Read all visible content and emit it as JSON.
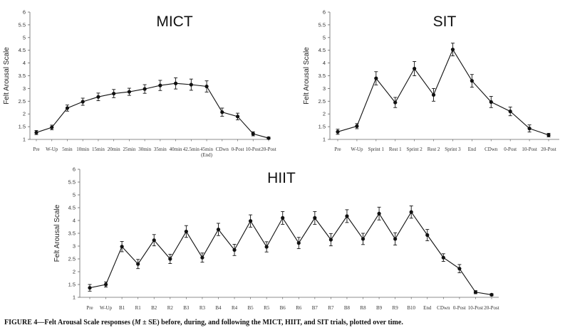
{
  "caption": {
    "label": "FIGURE 4—",
    "text_1": "Felt Arousal Scale responses (",
    "symbol_m": "M",
    "text_2": " ± SE) before, during, and following the MICT, HIIT, and SIT trials, plotted over time."
  },
  "chart_data": [
    {
      "type": "line",
      "title": "MICT",
      "ylabel": "Felt Arousal Scale",
      "xlabel": "",
      "ylim": [
        1,
        6
      ],
      "yticks": [
        1,
        1.5,
        2,
        2.5,
        3,
        3.5,
        4,
        4.5,
        5,
        5.5,
        6
      ],
      "grid": false,
      "categories": [
        "Pre",
        "W-Up",
        "5min",
        "10min",
        "15min",
        "20min",
        "25min",
        "30min",
        "35min",
        "40min",
        "42.5min",
        "45min",
        "CDwn",
        "0-Post",
        "10-Post",
        "20-Post"
      ],
      "category_sublabels": {
        "45min": "(End)"
      },
      "values": [
        1.27,
        1.47,
        2.23,
        2.48,
        2.67,
        2.8,
        2.87,
        2.98,
        3.12,
        3.2,
        3.15,
        3.08,
        2.07,
        1.9,
        1.22,
        1.05
      ],
      "se": [
        0.08,
        0.09,
        0.12,
        0.14,
        0.15,
        0.16,
        0.14,
        0.17,
        0.2,
        0.22,
        0.22,
        0.22,
        0.16,
        0.13,
        0.08,
        0.04
      ]
    },
    {
      "type": "line",
      "title": "SIT",
      "ylabel": "Felt Arousal Scale",
      "xlabel": "",
      "ylim": [
        1,
        6
      ],
      "yticks": [
        1,
        1.5,
        2,
        2.5,
        3,
        3.5,
        4,
        4.5,
        5,
        5.5,
        6
      ],
      "grid": false,
      "categories": [
        "Pre",
        "W-Up",
        "Sprint 1",
        "Rest 1",
        "Sprint 2",
        "Rest 2",
        "Sprint 3",
        "End",
        "CDwn",
        "0-Post",
        "10-Post",
        "20-Post"
      ],
      "values": [
        1.3,
        1.52,
        3.4,
        2.45,
        3.78,
        2.75,
        4.53,
        3.3,
        2.47,
        2.1,
        1.43,
        1.17
      ],
      "se": [
        0.1,
        0.1,
        0.26,
        0.2,
        0.28,
        0.25,
        0.25,
        0.25,
        0.22,
        0.17,
        0.14,
        0.07
      ]
    },
    {
      "type": "line",
      "title": "HIIT",
      "ylabel": "Felt Arousal Scale",
      "xlabel": "",
      "ylim": [
        1,
        6
      ],
      "yticks": [
        1,
        1.5,
        2,
        2.5,
        3,
        3.5,
        4,
        4.5,
        5,
        5.5,
        6
      ],
      "grid": false,
      "categories": [
        "Pre",
        "W-Up",
        "B1",
        "R1",
        "B2",
        "R2",
        "B3",
        "R3",
        "B4",
        "R4",
        "B5",
        "R5",
        "B6",
        "R6",
        "B7",
        "R7",
        "B8",
        "R8",
        "B9",
        "R9",
        "B10",
        "End",
        "CDwn",
        "0-Post",
        "10-Post",
        "20-Post"
      ],
      "values": [
        1.37,
        1.5,
        2.98,
        2.3,
        3.23,
        2.5,
        3.57,
        2.55,
        3.65,
        2.85,
        3.98,
        2.97,
        4.1,
        3.12,
        4.1,
        3.25,
        4.17,
        3.28,
        4.27,
        3.28,
        4.33,
        3.43,
        2.55,
        2.12,
        1.2,
        1.1
      ],
      "se": [
        0.13,
        0.1,
        0.2,
        0.18,
        0.22,
        0.18,
        0.23,
        0.18,
        0.24,
        0.22,
        0.24,
        0.2,
        0.25,
        0.22,
        0.25,
        0.24,
        0.25,
        0.22,
        0.25,
        0.24,
        0.24,
        0.22,
        0.15,
        0.16,
        0.06,
        0.04
      ]
    }
  ]
}
